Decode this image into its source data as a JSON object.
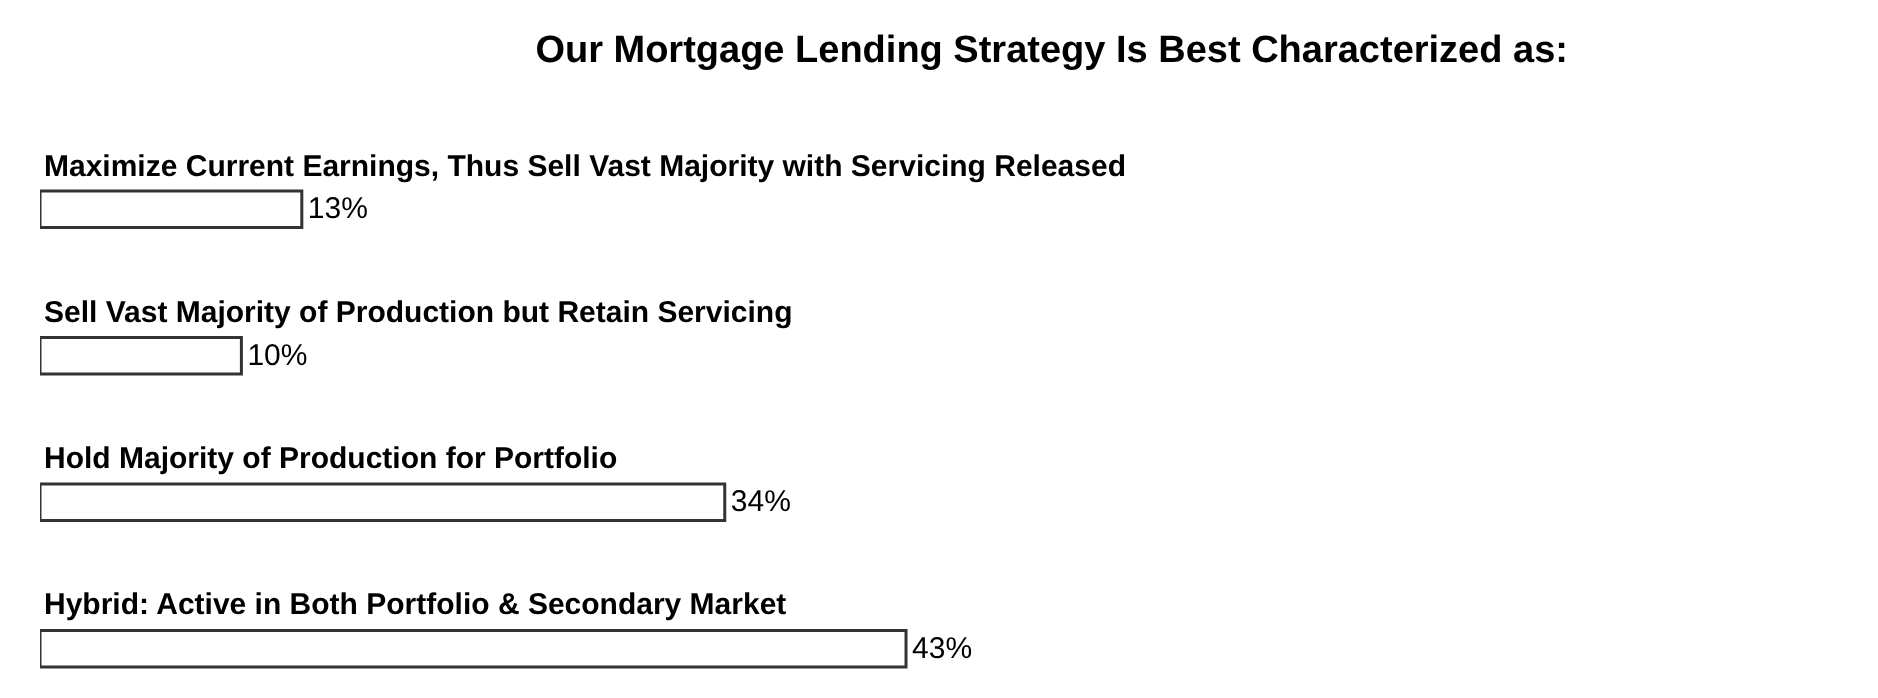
{
  "chart_data": {
    "type": "bar",
    "orientation": "horizontal",
    "title": "Our Mortgage Lending Strategy Is Best Characterized as:",
    "categories": [
      "Maximize Current Earnings, Thus Sell Vast Majority with Servicing Released",
      "Sell Vast Majority of Production but Retain Servicing",
      "Hold Majority of Production for Portfolio",
      "Hybrid: Active in Both Portfolio & Secondary Market"
    ],
    "values": [
      13,
      10,
      34,
      43
    ],
    "value_labels": [
      "13%",
      "10%",
      "34%",
      "43%"
    ],
    "color": "#ffffff"
  }
}
